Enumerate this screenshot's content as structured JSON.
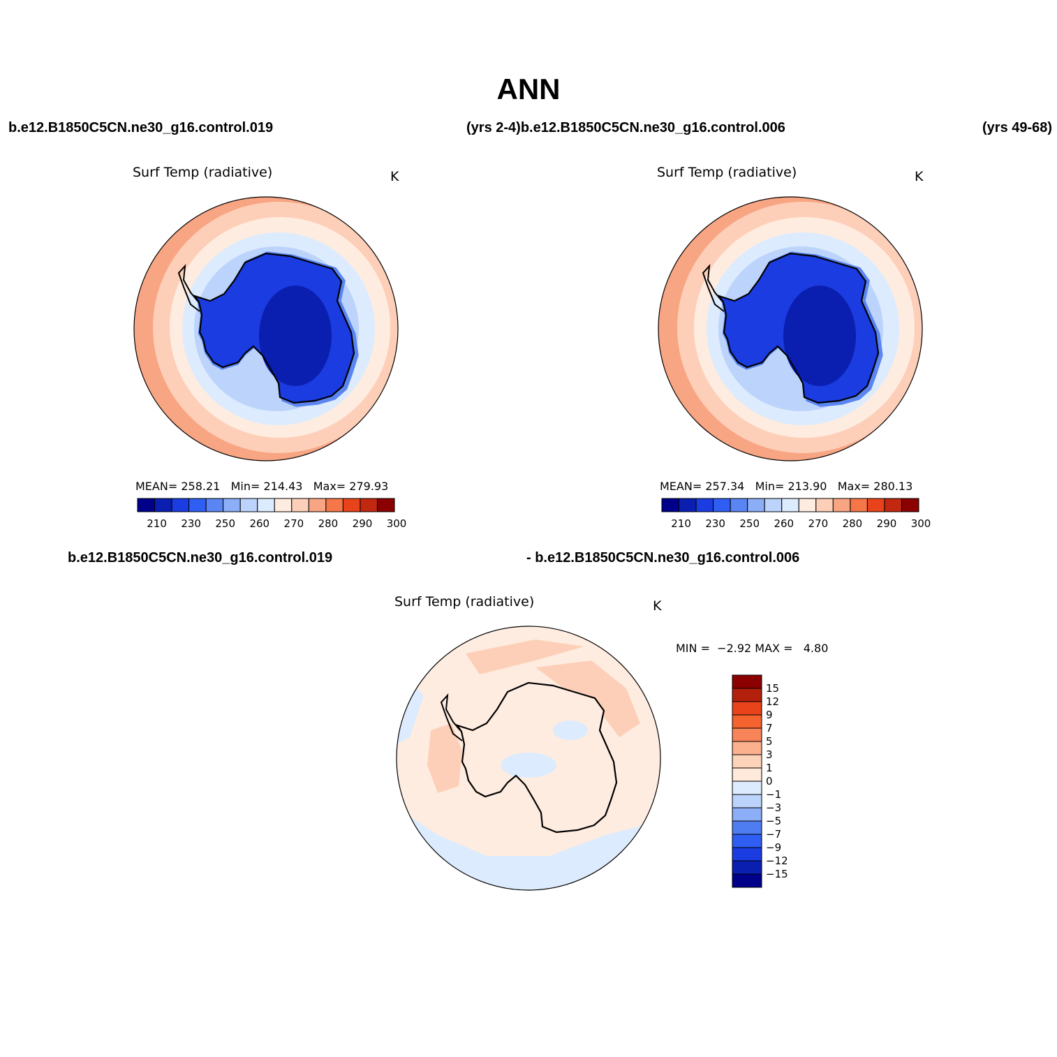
{
  "title": "ANN",
  "case_labels": {
    "top_left": "b.e12.B1850C5CN.ne30_g16.control.019",
    "top_center": "(yrs 2-4)b.e12.B1850C5CN.ne30_g16.control.006",
    "top_right": "(yrs 49-68)",
    "bottom_left": "b.e12.B1850C5CN.ne30_g16.control.019",
    "bottom_center": "- b.e12.B1850C5CN.ne30_g16.control.006"
  },
  "panels": [
    {
      "title": "Surf Temp (radiative)",
      "units": "K",
      "stats": {
        "mean_label": "MEAN=",
        "mean": "258.21",
        "min_label": "Min=",
        "min": "214.43",
        "max_label": "Max=",
        "max": "279.93"
      }
    },
    {
      "title": "Surf Temp (radiative)",
      "units": "K",
      "stats": {
        "mean_label": "MEAN=",
        "mean": "257.34",
        "min_label": "Min=",
        "min": "213.90",
        "max_label": "Max=",
        "max": "280.13"
      }
    },
    {
      "title": "Surf Temp (radiative)",
      "units": "K",
      "stats": {
        "min_label": "MIN =",
        "min": "−2.92",
        "max_label": "MAX =",
        "max": "4.80"
      }
    }
  ],
  "colorbar_abs": {
    "colors": [
      "#00008b",
      "#0a1fb0",
      "#1a3ce0",
      "#2f5ef2",
      "#5a85f2",
      "#8caef6",
      "#bcd4fb",
      "#dcebfd",
      "#ffece0",
      "#fdcfb8",
      "#f8a583",
      "#f47649",
      "#e8431a",
      "#c2270f",
      "#8b0000"
    ],
    "tick_labels": [
      "210",
      "230",
      "250",
      "260",
      "270",
      "280",
      "290",
      "300"
    ]
  },
  "colorbar_diff": {
    "colors_top_to_bottom": [
      "#8b0000",
      "#b3200c",
      "#e8431a",
      "#f4622e",
      "#f8855a",
      "#fbb08e",
      "#fdd3ba",
      "#ffe9da",
      "#dcebfd",
      "#bcd4fb",
      "#8caef6",
      "#4e7df2",
      "#2f5ef2",
      "#1a3ce0",
      "#0a1fb0",
      "#00008b"
    ],
    "tick_labels_top_to_bottom": [
      "15",
      "12",
      "9",
      "7",
      "5",
      "3",
      "1",
      "0",
      "−1",
      "−3",
      "−5",
      "−7",
      "−9",
      "−12",
      "−15"
    ]
  },
  "colors": {
    "ocean_warm": "#f8a583",
    "ocean_mid": "#fdcfb8",
    "ocean_cool": "#ffece0",
    "ice_pale": "#dcebfd",
    "ice_light": "#bcd4fb",
    "land_mid": "#5a85f2",
    "land_cold": "#1a3ce0",
    "plateau": "#0a1fb0",
    "diff_pos": "#fdcfb8",
    "diff_neg": "#dcebfd"
  }
}
